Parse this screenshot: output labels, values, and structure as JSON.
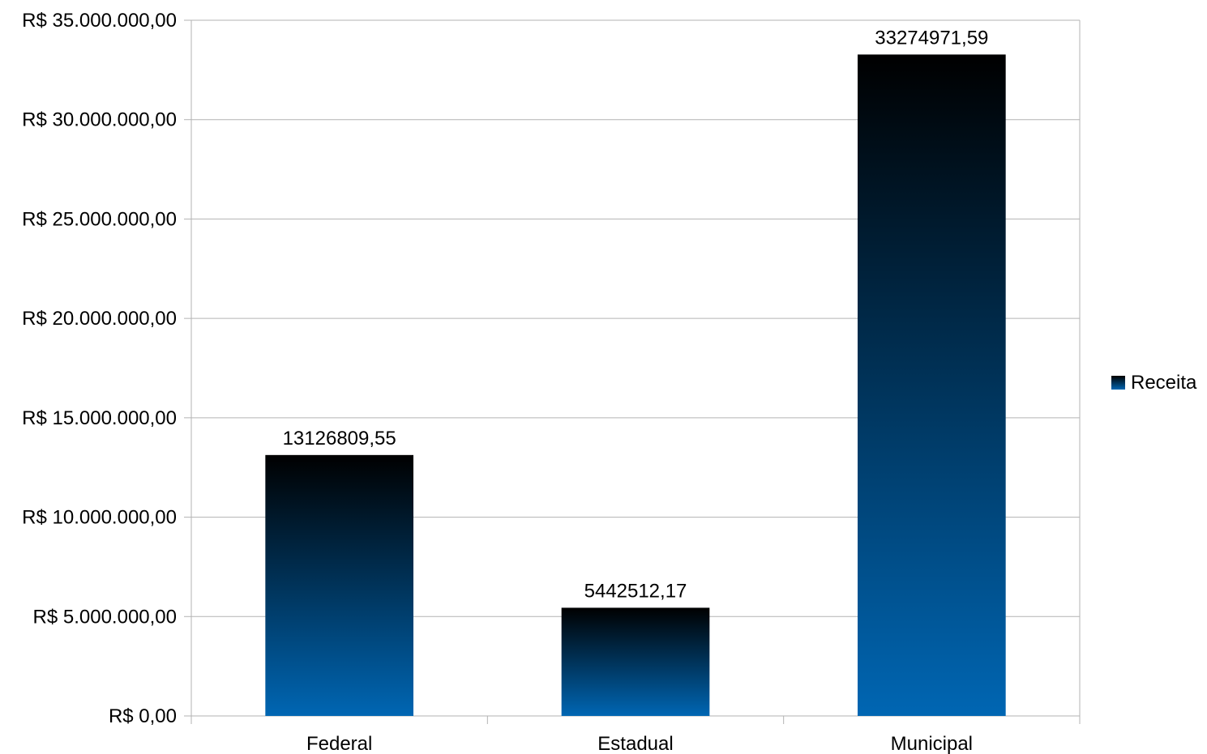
{
  "chart_data": {
    "type": "bar",
    "title": "",
    "xlabel": "",
    "ylabel": "",
    "categories": [
      "Federal",
      "Estadual",
      "Municipal"
    ],
    "series": [
      {
        "name": "Receita",
        "values": [
          13126809.55,
          5442512.17,
          33274971.59
        ],
        "data_labels": [
          "13126809,55",
          "5442512,17",
          "33274971,59"
        ],
        "gradient_top": "#000000",
        "gradient_bottom": "#0066b3"
      }
    ],
    "ylim": [
      0,
      35000000
    ],
    "yticks": [
      0,
      5000000,
      10000000,
      15000000,
      20000000,
      25000000,
      30000000,
      35000000
    ],
    "ytick_labels": [
      "R$ 0,00",
      "R$ 5.000.000,00",
      "R$ 10.000.000,00",
      "R$ 15.000.000,00",
      "R$ 20.000.000,00",
      "R$ 25.000.000,00",
      "R$ 30.000.000,00",
      "R$ 35.000.000,00"
    ],
    "grid": true,
    "grid_color": "#b3b3b3",
    "legend": "right"
  }
}
